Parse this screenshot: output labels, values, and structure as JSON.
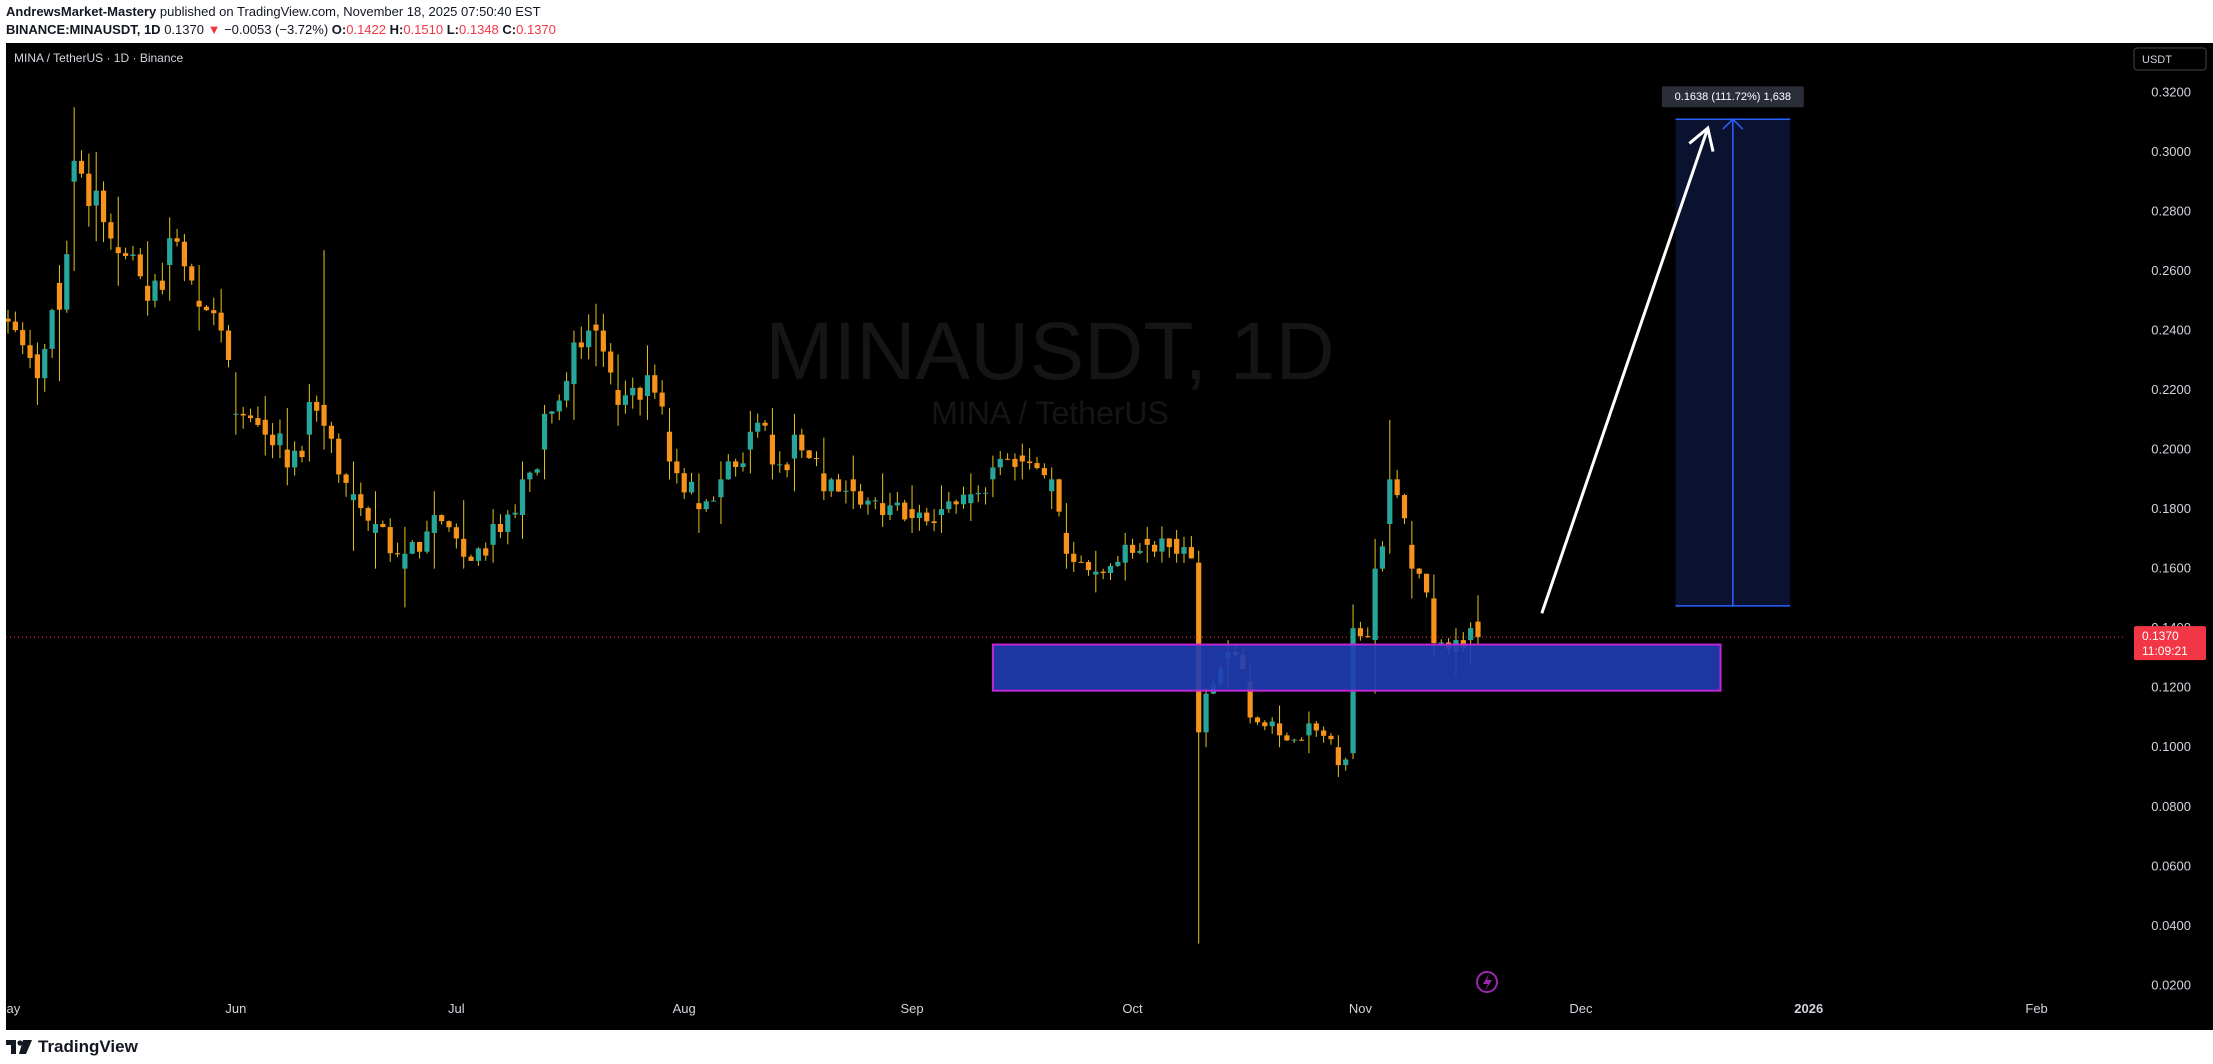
{
  "header": {
    "author": "AndrewsMarket-Mastery",
    "published_text": "published on TradingView.com, November 18, 2025 07:50:40 EST",
    "symbol_line": "BINANCE:MINAUSDT, 1D",
    "last": "0.1370",
    "change": "−0.0053 (−3.72%)",
    "o_label": "O:",
    "o_value": "0.1422",
    "h_label": "H:",
    "h_value": "0.1510",
    "l_label": "L:",
    "l_value": "0.1348",
    "c_label": "C:",
    "c_value": "0.1370"
  },
  "chart": {
    "legend_title": "MINA / TetherUS · 1D · Binance",
    "currency_button": "USDT",
    "watermark_symbol": "MINAUSDT, 1D",
    "watermark_name": "MINA / TetherUS",
    "current_price_label": "0.1370",
    "countdown_label": "11:09:21",
    "measure_label": "0.1638 (111.72%) 1,638",
    "colors": {
      "background": "#000000",
      "up": "#26a69a",
      "down": "#f7931a",
      "wick": "#e6c419",
      "zone_fill": "#1f3cb4",
      "zone_border": "#c026d3",
      "measure_fill": "#0b1230",
      "measure_line": "#2962ff",
      "price_line": "#f23645"
    }
  },
  "footer": {
    "brand": "TradingView"
  },
  "chart_data": {
    "type": "candlestick",
    "title": "MINA / TetherUS · 1D · Binance",
    "x_type": "date",
    "x_ticks": [
      "May",
      "Jun",
      "Jul",
      "Aug",
      "Sep",
      "Oct",
      "Nov",
      "Dec",
      "2026",
      "Feb"
    ],
    "y_ticks": [
      "0.3200",
      "0.3000",
      "0.2800",
      "0.2600",
      "0.2400",
      "0.2200",
      "0.2000",
      "0.1800",
      "0.1600",
      "0.1400",
      "0.1200",
      "0.1000",
      "0.0800",
      "0.0600",
      "0.0400",
      "0.0200"
    ],
    "y_range": [
      0.005,
      0.3366
    ],
    "series": [
      {
        "name": "MINAUSDT",
        "ohlc_anchors": [
          [
            "2025-05-01",
            0.244,
            0.247,
            0.239,
            0.243
          ],
          [
            "2025-05-05",
            0.232,
            0.236,
            0.215,
            0.224
          ],
          [
            "2025-05-08",
            0.256,
            0.262,
            0.223,
            0.247
          ],
          [
            "2025-05-10",
            0.29,
            0.315,
            0.26,
            0.297
          ],
          [
            "2025-05-13",
            0.282,
            0.3,
            0.27,
            0.287
          ],
          [
            "2025-05-16",
            0.268,
            0.285,
            0.255,
            0.266
          ],
          [
            "2025-05-20",
            0.255,
            0.27,
            0.245,
            0.25
          ],
          [
            "2025-05-23",
            0.262,
            0.278,
            0.25,
            0.271
          ],
          [
            "2025-05-27",
            0.25,
            0.262,
            0.24,
            0.248
          ],
          [
            "2025-05-30",
            0.246,
            0.254,
            0.236,
            0.24
          ],
          [
            "2025-06-01",
            0.212,
            0.226,
            0.205,
            0.212
          ],
          [
            "2025-06-05",
            0.21,
            0.218,
            0.198,
            0.205
          ],
          [
            "2025-06-08",
            0.2,
            0.214,
            0.188,
            0.194
          ],
          [
            "2025-06-11",
            0.205,
            0.222,
            0.196,
            0.216
          ],
          [
            "2025-06-13",
            0.215,
            0.267,
            0.2,
            0.208
          ],
          [
            "2025-06-17",
            0.183,
            0.196,
            0.166,
            0.185
          ],
          [
            "2025-06-20",
            0.172,
            0.186,
            0.16,
            0.175
          ],
          [
            "2025-06-24",
            0.16,
            0.174,
            0.147,
            0.165
          ],
          [
            "2025-06-28",
            0.172,
            0.186,
            0.16,
            0.178
          ],
          [
            "2025-07-02",
            0.17,
            0.183,
            0.16,
            0.164
          ],
          [
            "2025-07-06",
            0.168,
            0.18,
            0.162,
            0.175
          ],
          [
            "2025-07-10",
            0.178,
            0.196,
            0.17,
            0.19
          ],
          [
            "2025-07-13",
            0.2,
            0.215,
            0.19,
            0.212
          ],
          [
            "2025-07-17",
            0.222,
            0.24,
            0.21,
            0.236
          ],
          [
            "2025-07-20",
            0.242,
            0.249,
            0.228,
            0.24
          ],
          [
            "2025-07-23",
            0.22,
            0.232,
            0.208,
            0.215
          ],
          [
            "2025-07-27",
            0.218,
            0.235,
            0.21,
            0.225
          ],
          [
            "2025-07-30",
            0.206,
            0.214,
            0.19,
            0.196
          ],
          [
            "2025-08-03",
            0.182,
            0.192,
            0.172,
            0.18
          ],
          [
            "2025-08-06",
            0.184,
            0.196,
            0.175,
            0.19
          ],
          [
            "2025-08-10",
            0.2,
            0.213,
            0.192,
            0.206
          ],
          [
            "2025-08-13",
            0.205,
            0.214,
            0.19,
            0.195
          ],
          [
            "2025-08-16",
            0.197,
            0.212,
            0.186,
            0.205
          ],
          [
            "2025-08-20",
            0.192,
            0.204,
            0.183,
            0.186
          ],
          [
            "2025-08-24",
            0.19,
            0.198,
            0.18,
            0.186
          ],
          [
            "2025-08-28",
            0.182,
            0.192,
            0.174,
            0.178
          ],
          [
            "2025-09-01",
            0.18,
            0.188,
            0.172,
            0.177
          ],
          [
            "2025-09-05",
            0.178,
            0.188,
            0.172,
            0.18
          ],
          [
            "2025-09-09",
            0.182,
            0.192,
            0.176,
            0.185
          ],
          [
            "2025-09-12",
            0.19,
            0.198,
            0.184,
            0.194
          ],
          [
            "2025-09-16",
            0.198,
            0.202,
            0.19,
            0.196
          ],
          [
            "2025-09-20",
            0.186,
            0.194,
            0.18,
            0.19
          ],
          [
            "2025-09-22",
            0.172,
            0.182,
            0.16,
            0.165
          ],
          [
            "2025-09-26",
            0.158,
            0.166,
            0.152,
            0.159
          ],
          [
            "2025-09-30",
            0.162,
            0.172,
            0.156,
            0.168
          ],
          [
            "2025-10-03",
            0.17,
            0.174,
            0.162,
            0.168
          ],
          [
            "2025-10-07",
            0.17,
            0.173,
            0.162,
            0.165
          ],
          [
            "2025-10-10",
            0.162,
            0.166,
            0.034,
            0.105
          ],
          [
            "2025-10-11",
            0.105,
            0.12,
            0.1,
            0.118
          ],
          [
            "2025-10-14",
            0.13,
            0.136,
            0.12,
            0.132
          ],
          [
            "2025-10-17",
            0.122,
            0.128,
            0.108,
            0.11
          ],
          [
            "2025-10-21",
            0.108,
            0.114,
            0.1,
            0.104
          ],
          [
            "2025-10-25",
            0.104,
            0.112,
            0.098,
            0.108
          ],
          [
            "2025-10-29",
            0.1,
            0.104,
            0.09,
            0.094
          ],
          [
            "2025-10-31",
            0.098,
            0.148,
            0.096,
            0.14
          ],
          [
            "2025-11-03",
            0.136,
            0.17,
            0.118,
            0.16
          ],
          [
            "2025-11-05",
            0.175,
            0.21,
            0.165,
            0.19
          ],
          [
            "2025-11-08",
            0.168,
            0.176,
            0.15,
            0.16
          ],
          [
            "2025-11-11",
            0.15,
            0.158,
            0.13,
            0.135
          ],
          [
            "2025-11-14",
            0.132,
            0.14,
            0.124,
            0.136
          ],
          [
            "2025-11-16",
            0.136,
            0.142,
            0.128,
            0.14
          ],
          [
            "2025-11-17",
            0.1422,
            0.151,
            0.1348,
            0.137
          ]
        ]
      }
    ],
    "last_price": 0.137,
    "annotations": [
      {
        "type": "zone",
        "price_from": 0.119,
        "price_to": 0.1345,
        "date_from": "2025-09-12",
        "date_to": "2025-12-20"
      },
      {
        "type": "measure",
        "price_from": 0.1475,
        "price_to": 0.311,
        "date_from": "2025-12-20",
        "date_to": "2026-01-05",
        "label": "0.1638 (111.72%) 1,638"
      },
      {
        "type": "arrow",
        "from_date": "2025-11-25",
        "from_price": 0.145,
        "to_date": "2025-12-15",
        "to_price": 0.308
      }
    ]
  }
}
